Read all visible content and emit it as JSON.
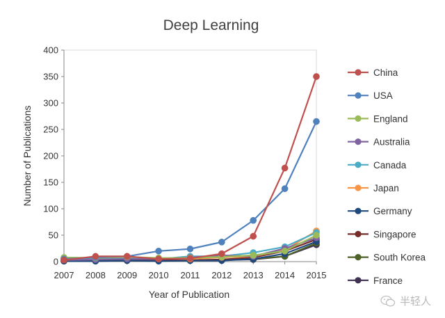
{
  "chart_data": {
    "type": "line",
    "title": "Deep Learning",
    "xlabel": "Year of Publication",
    "ylabel": "Number of Publications",
    "ylim": [
      0,
      400
    ],
    "yticks": [
      0,
      50,
      100,
      150,
      200,
      250,
      300,
      350,
      400
    ],
    "grid": false,
    "legend_position": "right",
    "categories": [
      "2007",
      "2008",
      "2009",
      "2010",
      "2011",
      "2012",
      "2013",
      "2014",
      "2015"
    ],
    "series": [
      {
        "name": "China",
        "color": "#c0504d",
        "values": [
          3,
          10,
          10,
          5,
          6,
          15,
          48,
          177,
          350
        ]
      },
      {
        "name": "USA",
        "color": "#4f81bd",
        "values": [
          5,
          8,
          10,
          20,
          24,
          37,
          78,
          138,
          265
        ]
      },
      {
        "name": "England",
        "color": "#9bbb59",
        "values": [
          8,
          7,
          9,
          7,
          7,
          9,
          12,
          20,
          50
        ]
      },
      {
        "name": "Australia",
        "color": "#8064a2",
        "values": [
          3,
          4,
          5,
          5,
          8,
          12,
          10,
          25,
          45
        ]
      },
      {
        "name": "Canada",
        "color": "#4bacc6",
        "values": [
          6,
          5,
          6,
          5,
          10,
          10,
          17,
          28,
          55
        ]
      },
      {
        "name": "Japan",
        "color": "#f79646",
        "values": [
          5,
          8,
          8,
          6,
          5,
          8,
          10,
          22,
          58
        ]
      },
      {
        "name": "Germany",
        "color": "#1f497d",
        "values": [
          1,
          1,
          2,
          1,
          2,
          2,
          5,
          15,
          38
        ]
      },
      {
        "name": "Singapore",
        "color": "#772c2a",
        "values": [
          2,
          3,
          3,
          3,
          3,
          4,
          8,
          20,
          42
        ]
      },
      {
        "name": "South Korea",
        "color": "#4f6228",
        "values": [
          1,
          2,
          2,
          2,
          2,
          3,
          5,
          10,
          35
        ]
      },
      {
        "name": "France",
        "color": "#403152",
        "values": [
          1,
          1,
          2,
          2,
          3,
          3,
          4,
          10,
          32
        ]
      }
    ]
  },
  "watermark": {
    "icon": "wechat-icon",
    "text": "半轻人"
  }
}
